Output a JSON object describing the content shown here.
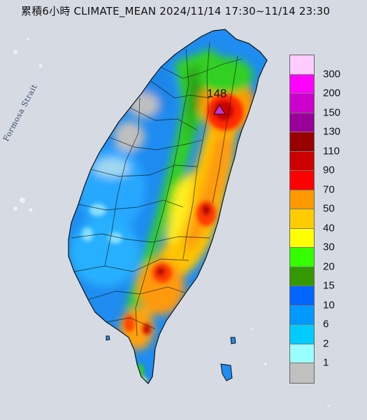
{
  "map": {
    "title": "累積6小時 CLIMATE_MEAN 2024/11/14 17:30~11/14 23:30",
    "strait_label": "Formosa Strait",
    "peak_value": "148",
    "peak_marker_color": "#cc33cc",
    "sea_color": "#d6dbe3",
    "legend": {
      "labels": [
        "300",
        "200",
        "150",
        "130",
        "110",
        "90",
        "70",
        "50",
        "40",
        "30",
        "20",
        "15",
        "10",
        "6",
        "2",
        "1"
      ],
      "colors": [
        "#ffccff",
        "#ff00ff",
        "#cc00cc",
        "#990099",
        "#990000",
        "#cc0000",
        "#ff0000",
        "#ff9900",
        "#ffcc00",
        "#ffff00",
        "#33ff00",
        "#339900",
        "#0066ff",
        "#0099ff",
        "#00ccff",
        "#99ffff",
        "#c0c0c0"
      ]
    }
  }
}
